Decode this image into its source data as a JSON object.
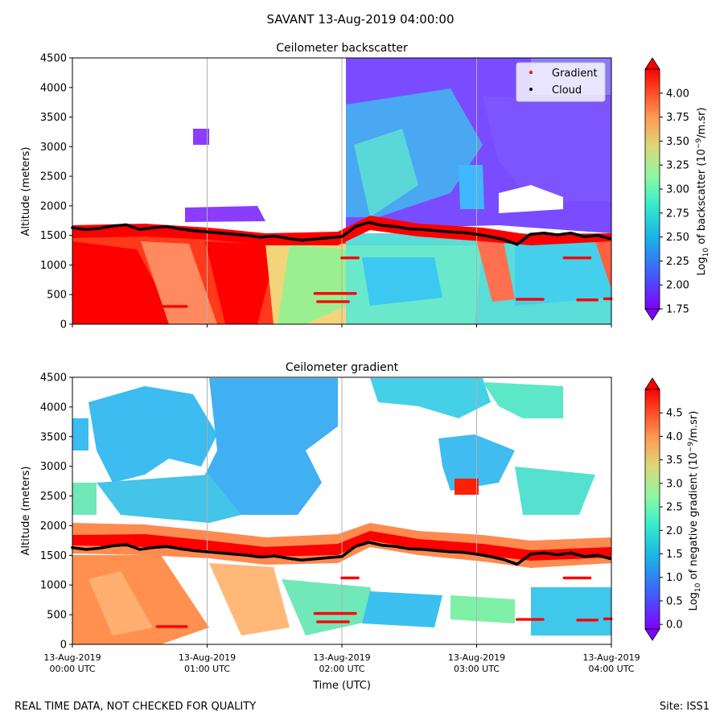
{
  "figure": {
    "suptitle": "SAVANT 13-Aug-2019 04:00:00",
    "footer_left": "REAL TIME DATA, NOT CHECKED FOR QUALITY",
    "footer_right": "Site: ISS1"
  },
  "chart_data": [
    {
      "type": "heatmap",
      "title": "Ceilometer backscatter",
      "xlabel": "",
      "ylabel": "Altitude (meters)",
      "ylim": [
        0,
        4500
      ],
      "yticks": [
        "0",
        "500",
        "1000",
        "1500",
        "2000",
        "2500",
        "3000",
        "3500",
        "4000",
        "4500"
      ],
      "xlim_hours_utc": [
        0,
        4
      ],
      "xticks": [],
      "grid": "vertical lines at hourly ticks",
      "legend": {
        "position": "top-right",
        "entries": [
          "Gradient",
          "Cloud"
        ]
      },
      "colorbar": {
        "label": "Log10 of backscatter (10^-9/m.sr)",
        "label_main": "Log",
        "label_sub": "10",
        "label_rest1": " of backscatter (10",
        "label_sup": "−9",
        "label_rest2": "/m.sr)",
        "range": [
          1.75,
          4.25
        ],
        "ticks": [
          "1.75",
          "2.00",
          "2.25",
          "2.50",
          "2.75",
          "3.00",
          "3.25",
          "3.50",
          "3.75",
          "4.00"
        ],
        "colormap": "rainbow"
      },
      "series": [
        {
          "name": "Gradient",
          "color": "#ff0000",
          "marker": "dot"
        },
        {
          "name": "Cloud",
          "color": "#000000",
          "marker": "dot"
        }
      ],
      "cloud_base_trace": {
        "x_hours": [
          0.0,
          0.1,
          0.2,
          0.3,
          0.4,
          0.5,
          0.6,
          0.7,
          0.8,
          0.9,
          1.0,
          1.1,
          1.2,
          1.3,
          1.4,
          1.5,
          1.6,
          1.7,
          1.8,
          1.9,
          2.0,
          2.1,
          2.2,
          2.3,
          2.4,
          2.5,
          2.6,
          2.7,
          2.8,
          2.9,
          3.0,
          3.1,
          3.2,
          3.3,
          3.4,
          3.5,
          3.6,
          3.7,
          3.8,
          3.9,
          4.0
        ],
        "y_m": [
          1630,
          1600,
          1620,
          1660,
          1680,
          1600,
          1630,
          1650,
          1610,
          1580,
          1560,
          1540,
          1520,
          1500,
          1470,
          1490,
          1450,
          1420,
          1440,
          1460,
          1480,
          1650,
          1720,
          1670,
          1650,
          1610,
          1600,
          1580,
          1560,
          1550,
          1520,
          1480,
          1430,
          1350,
          1520,
          1540,
          1510,
          1540,
          1480,
          1500,
          1440
        ]
      },
      "gradient_segments_hours_m": [
        [
          0.63,
          0.85,
          300
        ],
        [
          2.0,
          2.12,
          1120
        ],
        [
          1.8,
          2.1,
          520
        ],
        [
          1.82,
          2.05,
          380
        ],
        [
          3.3,
          3.5,
          420
        ],
        [
          3.65,
          3.85,
          1120
        ],
        [
          3.75,
          3.9,
          410
        ],
        [
          3.95,
          4.0,
          430
        ]
      ]
    },
    {
      "type": "heatmap",
      "title": "Ceilometer gradient",
      "xlabel": "Time (UTC)",
      "ylabel": "Altitude (meters)",
      "ylim": [
        0,
        4500
      ],
      "yticks": [
        "0",
        "500",
        "1000",
        "1500",
        "2000",
        "2500",
        "3000",
        "3500",
        "4000",
        "4500"
      ],
      "xlim_hours_utc": [
        0,
        4
      ],
      "xticks": [
        [
          "13-Aug-2019",
          "00:00 UTC"
        ],
        [
          "13-Aug-2019",
          "01:00 UTC"
        ],
        [
          "13-Aug-2019",
          "02:00 UTC"
        ],
        [
          "13-Aug-2019",
          "03:00 UTC"
        ],
        [
          "13-Aug-2019",
          "04:00 UTC"
        ]
      ],
      "grid": "vertical lines at hourly ticks",
      "colorbar": {
        "label": "Log10 of negative gradient (10^-9/m.sr)",
        "label_main": "Log",
        "label_sub": "10",
        "label_rest1": " of negative gradient (10",
        "label_sup": "−9",
        "label_rest2": "/m.sr)",
        "range": [
          -0.1,
          5.0
        ],
        "ticks": [
          "0.0",
          "0.5",
          "1.0",
          "1.5",
          "2.0",
          "2.5",
          "3.0",
          "3.5",
          "4.0",
          "4.5"
        ],
        "colormap": "rainbow"
      }
    }
  ]
}
